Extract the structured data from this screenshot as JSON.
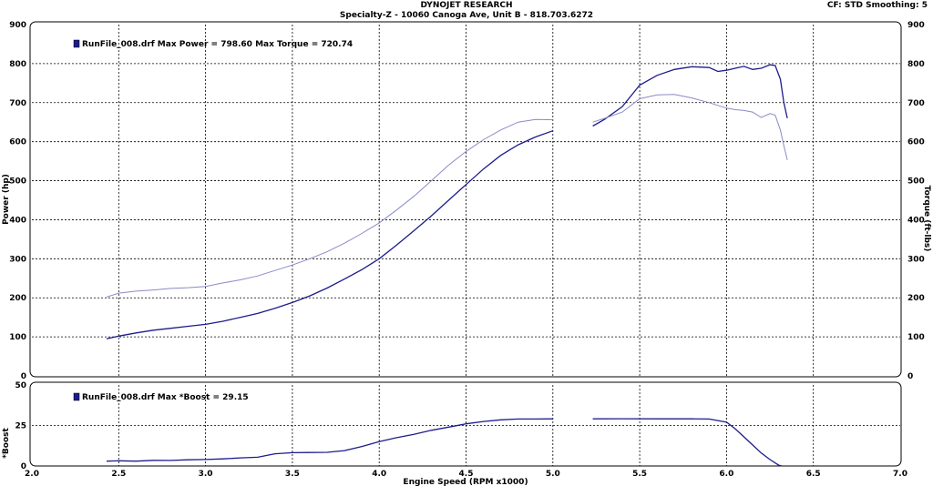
{
  "header": {
    "title": "DYNOJET RESEARCH",
    "subtitle": "Specialty-Z - 10060 Canoga Ave, Unit B - 818.703.6272",
    "settings": "CF: STD  Smoothing: 5"
  },
  "colors": {
    "power": "#1c1c8c",
    "torque": "#8a8ac8",
    "boost": "#1c1c8c",
    "legend_marker": "#1c1c8c"
  },
  "chart_data": [
    {
      "type": "line",
      "xlabel": "Engine Speed (RPM x1000)",
      "ylabel": "Power (hp)",
      "ylabel_right": "Torque (ft-lbs)",
      "xlim": [
        2.0,
        7.0
      ],
      "ylim": [
        0,
        900
      ],
      "x_ticks": [
        "2.0",
        "2.5",
        "3.0",
        "3.5",
        "4.0",
        "4.5",
        "5.0",
        "5.5",
        "6.0",
        "6.5",
        "7.0"
      ],
      "y_ticks": [
        "0",
        "100",
        "200",
        "300",
        "400",
        "500",
        "600",
        "700",
        "800",
        "900"
      ],
      "grid": true,
      "legend_text": "RunFile_008.drf Max Power = 798.60     Max Torque = 720.74",
      "series": [
        {
          "key": "power",
          "segments": [
            [
              [
                2.43,
                95
              ],
              [
                2.5,
                102
              ],
              [
                2.6,
                110
              ],
              [
                2.7,
                117
              ],
              [
                2.8,
                122
              ],
              [
                2.9,
                127
              ],
              [
                3.0,
                132
              ],
              [
                3.1,
                140
              ],
              [
                3.2,
                150
              ],
              [
                3.3,
                160
              ],
              [
                3.4,
                173
              ],
              [
                3.5,
                188
              ],
              [
                3.6,
                205
              ],
              [
                3.7,
                225
              ],
              [
                3.8,
                248
              ],
              [
                3.9,
                272
              ],
              [
                4.0,
                300
              ],
              [
                4.1,
                335
              ],
              [
                4.2,
                372
              ],
              [
                4.3,
                410
              ],
              [
                4.4,
                450
              ],
              [
                4.5,
                490
              ],
              [
                4.6,
                530
              ],
              [
                4.7,
                565
              ],
              [
                4.8,
                592
              ],
              [
                4.9,
                612
              ],
              [
                5.0,
                628
              ]
            ],
            [
              [
                5.23,
                640
              ],
              [
                5.3,
                658
              ],
              [
                5.4,
                690
              ],
              [
                5.5,
                745
              ],
              [
                5.6,
                770
              ],
              [
                5.7,
                785
              ],
              [
                5.8,
                792
              ],
              [
                5.9,
                790
              ],
              [
                5.95,
                780
              ],
              [
                6.0,
                783
              ],
              [
                6.05,
                788
              ],
              [
                6.1,
                793
              ],
              [
                6.15,
                785
              ],
              [
                6.2,
                788
              ],
              [
                6.25,
                797
              ],
              [
                6.28,
                795
              ],
              [
                6.31,
                760
              ],
              [
                6.33,
                700
              ],
              [
                6.35,
                660
              ]
            ]
          ]
        },
        {
          "key": "torque",
          "segments": [
            [
              [
                2.43,
                202
              ],
              [
                2.5,
                212
              ],
              [
                2.6,
                217
              ],
              [
                2.7,
                220
              ],
              [
                2.8,
                224
              ],
              [
                2.9,
                226
              ],
              [
                3.0,
                229
              ],
              [
                3.1,
                238
              ],
              [
                3.2,
                246
              ],
              [
                3.3,
                256
              ],
              [
                3.4,
                270
              ],
              [
                3.5,
                284
              ],
              [
                3.6,
                300
              ],
              [
                3.7,
                318
              ],
              [
                3.8,
                340
              ],
              [
                3.9,
                365
              ],
              [
                4.0,
                392
              ],
              [
                4.1,
                425
              ],
              [
                4.2,
                460
              ],
              [
                4.3,
                500
              ],
              [
                4.4,
                540
              ],
              [
                4.5,
                575
              ],
              [
                4.6,
                605
              ],
              [
                4.7,
                630
              ],
              [
                4.8,
                650
              ],
              [
                4.9,
                657
              ],
              [
                5.0,
                656
              ]
            ],
            [
              [
                5.23,
                650
              ],
              [
                5.3,
                660
              ],
              [
                5.4,
                676
              ],
              [
                5.5,
                710
              ],
              [
                5.6,
                720
              ],
              [
                5.7,
                721
              ],
              [
                5.8,
                712
              ],
              [
                5.9,
                700
              ],
              [
                6.0,
                686
              ],
              [
                6.05,
                682
              ],
              [
                6.1,
                680
              ],
              [
                6.15,
                676
              ],
              [
                6.2,
                662
              ],
              [
                6.25,
                672
              ],
              [
                6.28,
                668
              ],
              [
                6.31,
                630
              ],
              [
                6.33,
                590
              ],
              [
                6.35,
                553
              ]
            ]
          ]
        }
      ]
    },
    {
      "type": "line",
      "xlabel": "Engine Speed (RPM x1000)",
      "ylabel": "*Boost",
      "xlim": [
        2.0,
        7.0
      ],
      "ylim": [
        0,
        50
      ],
      "y_ticks": [
        "0",
        "25",
        "50"
      ],
      "grid": true,
      "legend_text": "RunFile_008.drf Max *Boost = 29.15",
      "series": [
        {
          "key": "boost",
          "segments": [
            [
              [
                2.43,
                3
              ],
              [
                2.5,
                3.2
              ],
              [
                2.6,
                3
              ],
              [
                2.7,
                3.5
              ],
              [
                2.8,
                3.4
              ],
              [
                2.9,
                3.8
              ],
              [
                3.0,
                4
              ],
              [
                3.1,
                4.4
              ],
              [
                3.2,
                5
              ],
              [
                3.3,
                5.4
              ],
              [
                3.4,
                7.5
              ],
              [
                3.5,
                8.2
              ],
              [
                3.6,
                8.3
              ],
              [
                3.7,
                8.4
              ],
              [
                3.8,
                9.5
              ],
              [
                3.9,
                12
              ],
              [
                4.0,
                15
              ],
              [
                4.1,
                17.5
              ],
              [
                4.2,
                19.5
              ],
              [
                4.3,
                22
              ],
              [
                4.4,
                24
              ],
              [
                4.5,
                26
              ],
              [
                4.6,
                27.5
              ],
              [
                4.7,
                28.5
              ],
              [
                4.8,
                29
              ],
              [
                4.9,
                29
              ],
              [
                5.0,
                29.1
              ]
            ],
            [
              [
                5.23,
                29.1
              ],
              [
                5.4,
                29.15
              ],
              [
                5.6,
                29.1
              ],
              [
                5.8,
                29.1
              ],
              [
                5.9,
                29
              ],
              [
                6.0,
                27
              ],
              [
                6.05,
                23
              ],
              [
                6.1,
                18
              ],
              [
                6.15,
                13
              ],
              [
                6.2,
                8
              ],
              [
                6.25,
                4
              ],
              [
                6.3,
                0.5
              ],
              [
                6.32,
                0
              ]
            ]
          ]
        }
      ]
    }
  ]
}
